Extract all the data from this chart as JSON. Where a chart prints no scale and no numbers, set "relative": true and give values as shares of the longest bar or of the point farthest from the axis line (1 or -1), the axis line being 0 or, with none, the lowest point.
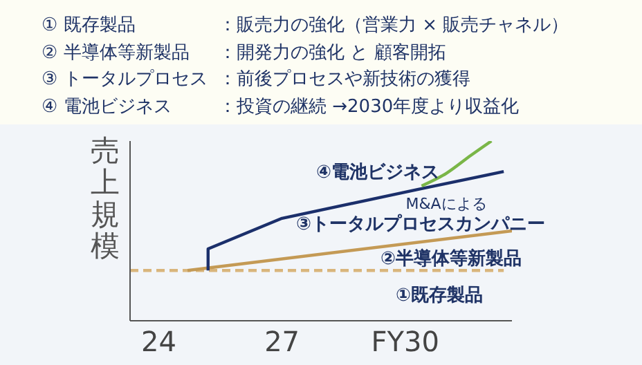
{
  "chart_data": {
    "type": "line",
    "relative": true,
    "ylabel": "売上規模",
    "annotations": [
      "① 既存製品：販売力の強化（営業力 × 販売チャネル）",
      "② 半導体等新製品：開発力の強化 と 顧客開拓",
      "③ トータルプロセス：前後プロセスや新技術の獲得",
      "④ 電池ビジネス：投資の継続 →2030年度より収益化",
      {
        "text": "M&Aによる",
        "x": 31,
        "y": 0.76
      }
    ],
    "xlim": [
      23.3,
      32.6
    ],
    "xticks": [
      24,
      27,
      {
        "value": 30,
        "label": "FY30"
      }
    ],
    "series": [
      {
        "name": "①既存製品",
        "color": "#d9b57c",
        "line_style": "dashed",
        "x": [
          23.3,
          32.4
        ],
        "values": [
          0.28,
          0.28
        ]
      },
      {
        "name": "②半導体等新製品",
        "color": "#c49a55",
        "x": [
          24.7,
          32.6
        ],
        "values": [
          0.28,
          0.5
        ]
      },
      {
        "name": "③トータルプロセスカンパニー",
        "color": "#1b2f6b",
        "x": [
          25.2,
          25.2,
          27,
          30.3,
          32.4
        ],
        "values": [
          0.28,
          0.4,
          0.57,
          0.73,
          0.83
        ]
      },
      {
        "name": "④電池ビジネス",
        "color": "#7ab648",
        "x": [
          30.4,
          31,
          31.6,
          32.1
        ],
        "values": [
          0.75,
          0.82,
          0.92,
          1
        ]
      }
    ]
  }
}
